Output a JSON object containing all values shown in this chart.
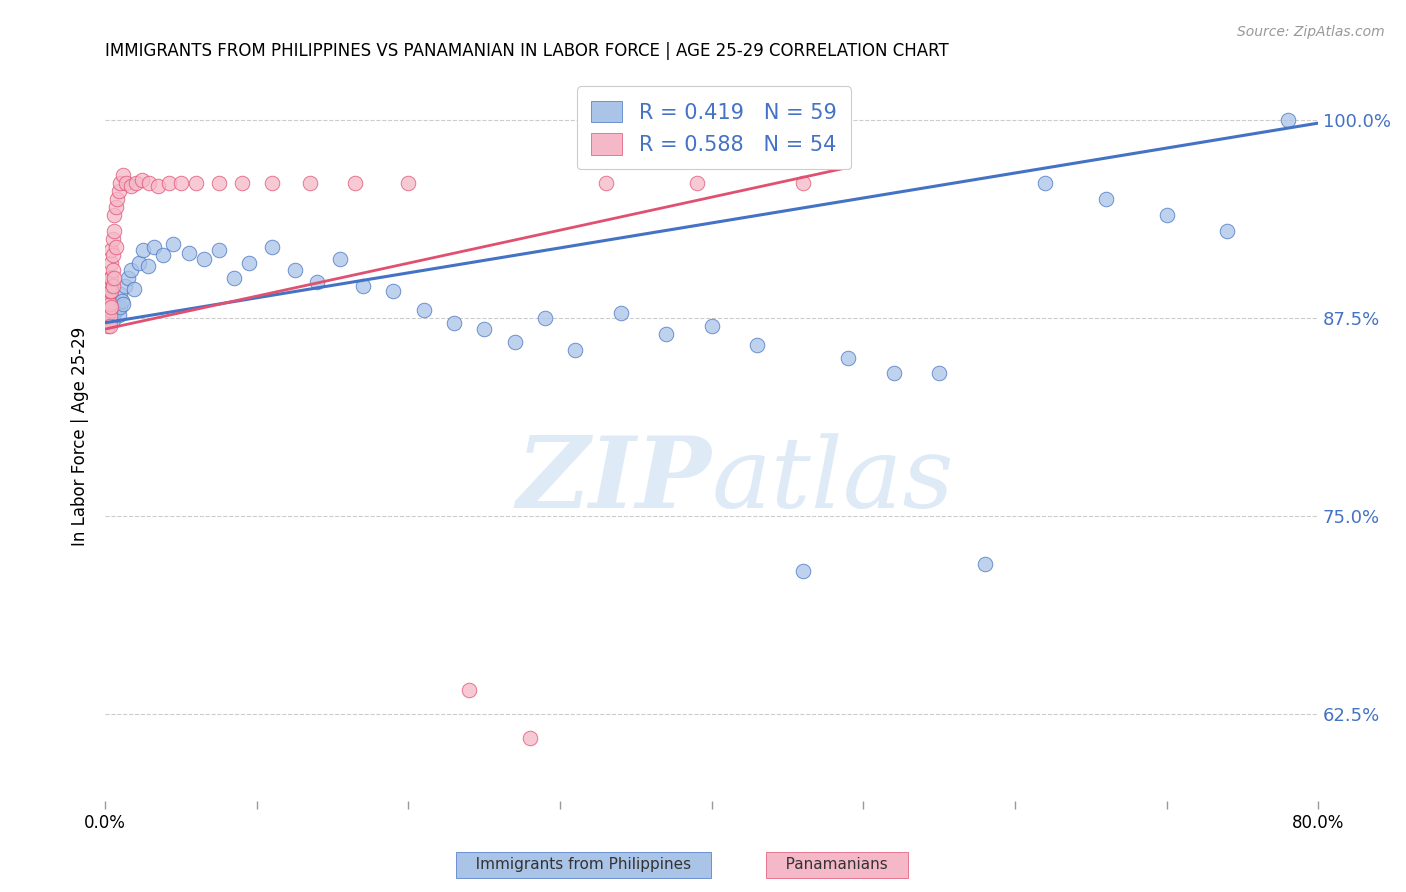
{
  "title": "IMMIGRANTS FROM PHILIPPINES VS PANAMANIAN IN LABOR FORCE | AGE 25-29 CORRELATION CHART",
  "source": "Source: ZipAtlas.com",
  "ylabel": "In Labor Force | Age 25-29",
  "legend_labels": [
    "Immigrants from Philippines",
    "Panamanians"
  ],
  "blue_R": 0.419,
  "blue_N": 59,
  "pink_R": 0.588,
  "pink_N": 54,
  "blue_color": "#aac4e8",
  "pink_color": "#f5b8c8",
  "blue_line_color": "#4472c4",
  "pink_line_color": "#e05070",
  "watermark_zip": "ZIP",
  "watermark_atlas": "atlas",
  "xlim": [
    0.0,
    0.8
  ],
  "ylim": [
    0.57,
    1.03
  ],
  "yticks": [
    0.625,
    0.75,
    0.875,
    1.0
  ],
  "ytick_labels": [
    "62.5%",
    "75.0%",
    "87.5%",
    "100.0%"
  ],
  "xticks": [
    0.0,
    0.1,
    0.2,
    0.3,
    0.4,
    0.5,
    0.6,
    0.7,
    0.8
  ],
  "xtick_labels": [
    "0.0%",
    "",
    "",
    "",
    "",
    "",
    "",
    "",
    "80.0%"
  ],
  "blue_x": [
    0.001,
    0.002,
    0.002,
    0.003,
    0.003,
    0.004,
    0.004,
    0.005,
    0.005,
    0.006,
    0.006,
    0.007,
    0.008,
    0.009,
    0.01,
    0.01,
    0.011,
    0.012,
    0.013,
    0.015,
    0.017,
    0.019,
    0.022,
    0.025,
    0.028,
    0.032,
    0.038,
    0.045,
    0.055,
    0.065,
    0.075,
    0.085,
    0.095,
    0.11,
    0.125,
    0.14,
    0.155,
    0.17,
    0.19,
    0.21,
    0.23,
    0.25,
    0.27,
    0.29,
    0.31,
    0.34,
    0.37,
    0.4,
    0.43,
    0.46,
    0.49,
    0.52,
    0.55,
    0.58,
    0.62,
    0.66,
    0.7,
    0.74,
    0.78
  ],
  "blue_y": [
    0.88,
    0.875,
    0.882,
    0.878,
    0.884,
    0.876,
    0.888,
    0.882,
    0.874,
    0.886,
    0.878,
    0.88,
    0.883,
    0.877,
    0.882,
    0.89,
    0.886,
    0.884,
    0.895,
    0.9,
    0.905,
    0.893,
    0.91,
    0.918,
    0.908,
    0.92,
    0.915,
    0.922,
    0.916,
    0.912,
    0.918,
    0.9,
    0.91,
    0.92,
    0.905,
    0.898,
    0.912,
    0.895,
    0.892,
    0.88,
    0.872,
    0.868,
    0.86,
    0.875,
    0.855,
    0.878,
    0.865,
    0.87,
    0.858,
    0.715,
    0.85,
    0.84,
    0.84,
    0.72,
    0.96,
    0.95,
    0.94,
    0.93,
    1.0
  ],
  "pink_x": [
    0.001,
    0.001,
    0.001,
    0.002,
    0.002,
    0.002,
    0.002,
    0.002,
    0.002,
    0.003,
    0.003,
    0.003,
    0.003,
    0.003,
    0.003,
    0.003,
    0.004,
    0.004,
    0.004,
    0.004,
    0.004,
    0.005,
    0.005,
    0.005,
    0.005,
    0.006,
    0.006,
    0.006,
    0.007,
    0.007,
    0.008,
    0.009,
    0.01,
    0.012,
    0.014,
    0.017,
    0.02,
    0.024,
    0.029,
    0.035,
    0.042,
    0.05,
    0.06,
    0.075,
    0.09,
    0.11,
    0.135,
    0.165,
    0.2,
    0.24,
    0.28,
    0.33,
    0.39,
    0.46
  ],
  "pink_y": [
    0.88,
    0.876,
    0.884,
    0.878,
    0.882,
    0.87,
    0.89,
    0.886,
    0.894,
    0.88,
    0.876,
    0.884,
    0.892,
    0.87,
    0.896,
    0.9,
    0.882,
    0.892,
    0.9,
    0.91,
    0.918,
    0.895,
    0.905,
    0.915,
    0.925,
    0.9,
    0.93,
    0.94,
    0.92,
    0.945,
    0.95,
    0.955,
    0.96,
    0.965,
    0.96,
    0.958,
    0.96,
    0.962,
    0.96,
    0.958,
    0.96,
    0.96,
    0.96,
    0.96,
    0.96,
    0.96,
    0.96,
    0.96,
    0.96,
    0.64,
    0.61,
    0.96,
    0.96,
    0.96
  ],
  "blue_trend_x": [
    0.0,
    0.8
  ],
  "blue_trend_y": [
    0.872,
    0.998
  ],
  "pink_trend_x": [
    0.0,
    0.49
  ],
  "pink_trend_y": [
    0.868,
    0.97
  ]
}
